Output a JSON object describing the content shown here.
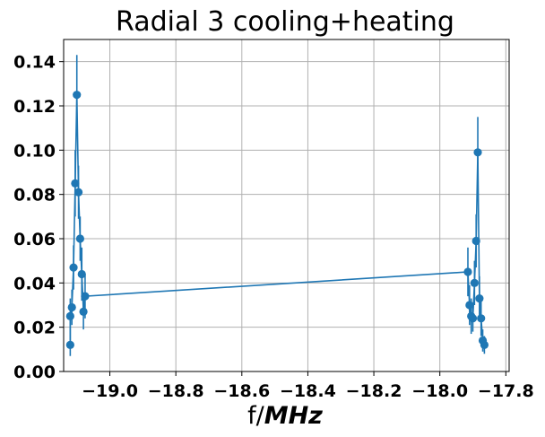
{
  "chart_data": {
    "type": "line",
    "title": "Radial 3 cooling+heating",
    "xlabel_prefix": "f/",
    "xlabel_unit": "MHz",
    "ylabel": "",
    "xlim": [
      -19.14,
      -17.79
    ],
    "ylim": [
      0.0,
      0.15
    ],
    "grid": true,
    "xticks": [
      -19.0,
      -18.8,
      -18.6,
      -18.4,
      -18.2,
      -18.0,
      -17.8
    ],
    "xtick_labels": [
      "−19.0",
      "−18.8",
      "−18.6",
      "−18.4",
      "−18.2",
      "−18.0",
      "−17.8"
    ],
    "yticks": [
      0.0,
      0.02,
      0.04,
      0.06,
      0.08,
      0.1,
      0.12,
      0.14
    ],
    "ytick_labels": [
      "0.00",
      "0.02",
      "0.04",
      "0.06",
      "0.08",
      "0.10",
      "0.12",
      "0.14"
    ],
    "color": "#1f77b4",
    "series": [
      {
        "x": [
          -19.12,
          -19.12,
          -19.115,
          -19.11,
          -19.105,
          -19.1,
          -19.095,
          -19.09,
          -19.085,
          -19.08,
          -19.075,
          -17.915,
          -17.91,
          -17.905,
          -17.9,
          -17.895,
          -17.89,
          -17.885,
          -17.88,
          -17.875,
          -17.87,
          -17.865
        ],
        "y": [
          0.012,
          0.025,
          0.029,
          0.047,
          0.085,
          0.125,
          0.081,
          0.06,
          0.044,
          0.027,
          0.034,
          0.045,
          0.03,
          0.025,
          0.024,
          0.04,
          0.059,
          0.099,
          0.033,
          0.024,
          0.014,
          0.012
        ],
        "yerr": [
          0.005,
          0.008,
          0.008,
          0.01,
          0.015,
          0.018,
          0.012,
          0.01,
          0.012,
          0.008,
          0.01,
          0.011,
          0.009,
          0.008,
          0.006,
          0.01,
          0.012,
          0.016,
          0.01,
          0.008,
          0.005,
          0.004
        ]
      }
    ]
  }
}
